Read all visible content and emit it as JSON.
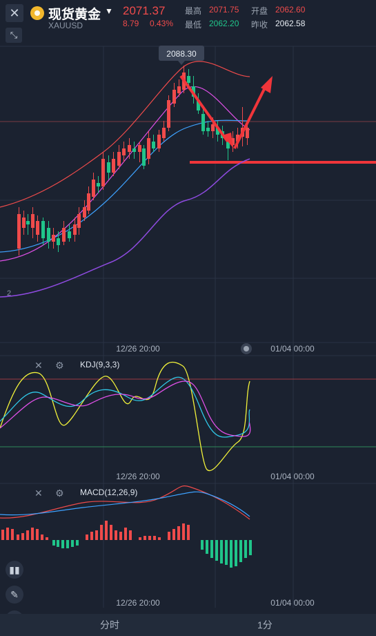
{
  "header": {
    "close_icon": "close-icon",
    "collapse_icon": "collapse-icon",
    "instrument": "现货黄金",
    "symbol": "XAUUSD",
    "price": "2071.37",
    "change": "8.79",
    "change_pct": "0.43%",
    "high_label": "最高",
    "high": "2071.75",
    "low_label": "最低",
    "low": "2062.20",
    "open_label": "开盘",
    "open": "2062.60",
    "prev_label": "昨收",
    "prev": "2062.58"
  },
  "colors": {
    "up": "#ef4b4b",
    "down": "#20c58a",
    "background": "#1b2230",
    "ma_fast": "#ef4b4b",
    "ma_mid": "#e050e8",
    "ma_blue": "#3ea2ff"
  },
  "main_chart": {
    "tooltip": "2088.30",
    "left_marker": "2",
    "x_labels": [
      "12/26 20:00",
      "01/04 00:00"
    ]
  },
  "kdj": {
    "label": "KDJ(9,3,3)",
    "x_labels": [
      "12/26 20:00",
      "01/04 00:00"
    ]
  },
  "macd": {
    "label": "MACD(12,26,9)",
    "x_labels": [
      "12/26 20:00",
      "01/04 00:00"
    ]
  },
  "tools": [
    "candles-icon",
    "pencil-icon",
    "indicator-icon"
  ],
  "tabs": [
    "分时",
    "1分"
  ]
}
